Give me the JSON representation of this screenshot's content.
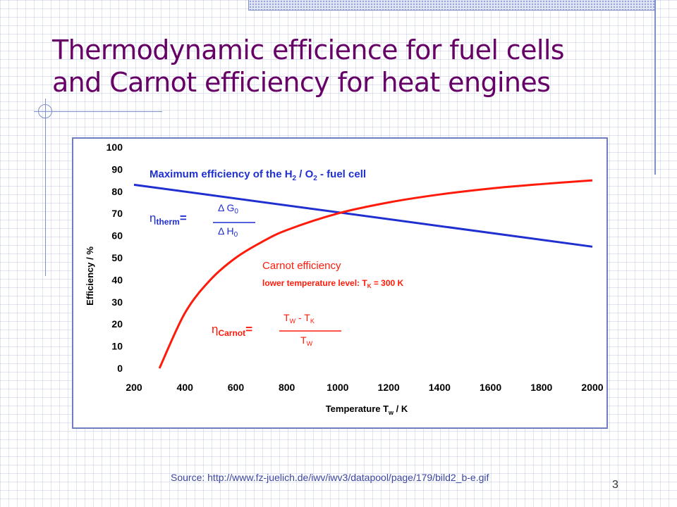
{
  "slide": {
    "title_line1": "Thermodynamic efficience for fuel cells",
    "title_line2": "and Carnot efficiency for heat engines",
    "source_label": "Source:",
    "source_url": "http://www.fz-juelich.de/iwv/iwv3/datapool/page/179/bild2_b-e.gif",
    "page_number": "3"
  },
  "colors": {
    "title": "#660066",
    "fuel_cell": "#1f2fd0",
    "carnot": "#ff1a0a",
    "frame": "#6e7ec0"
  },
  "chart_data": {
    "type": "line",
    "title": "",
    "xlabel": "Temperature T_w / K",
    "ylabel": "Efficiency / %",
    "xlim": [
      200,
      2000
    ],
    "ylim": [
      0,
      100
    ],
    "xticks": [
      200,
      400,
      600,
      800,
      1000,
      1200,
      1400,
      1600,
      1800,
      2000
    ],
    "yticks": [
      0,
      10,
      20,
      30,
      40,
      50,
      60,
      70,
      80,
      90,
      100
    ],
    "grid": false,
    "series": [
      {
        "name": "Maximum efficiency of the H2 / O2 - fuel cell",
        "color": "#1f2fd0",
        "x": [
          200,
          2000
        ],
        "y": [
          83,
          55
        ]
      },
      {
        "name": "Carnot efficiency",
        "color": "#ff1a0a",
        "x": [
          300,
          400,
          500,
          600,
          700,
          800,
          1000,
          1200,
          1400,
          1600,
          1800,
          2000
        ],
        "y": [
          0,
          25,
          40,
          50,
          57,
          62.5,
          70,
          75,
          78.6,
          81.3,
          83.3,
          85
        ]
      }
    ],
    "annotations": {
      "fuel_cell_label": "Maximum efficiency of the H",
      "fuel_cell_sub1": "2",
      "fuel_cell_mid": " / O",
      "fuel_cell_sub2": "2",
      "fuel_cell_tail": " - fuel cell",
      "eta": "η",
      "therm_sub": "therm",
      "equals": "=",
      "therm_num": "Δ G",
      "therm_num_sub": "0",
      "therm_den": "Δ H",
      "therm_den_sub": "0",
      "carnot_label": "Carnot efficiency",
      "carnot_level": "lower temperature level: T",
      "carnot_level_sub": "K",
      "carnot_level_tail": " = 300 K",
      "carnot_sub": "Carnot",
      "carnot_num": "T",
      "carnot_num_sub1": "W",
      "carnot_num_mid": " - T",
      "carnot_num_sub2": "K",
      "carnot_den": "T",
      "carnot_den_sub": "W"
    }
  }
}
